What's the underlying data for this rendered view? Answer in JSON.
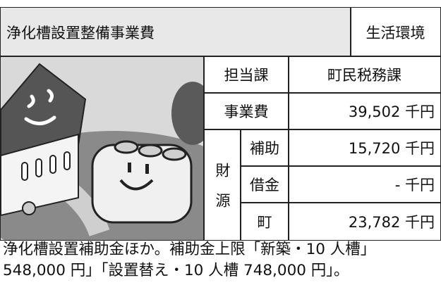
{
  "header": {
    "title": "浄化槽設置整備事業費",
    "category": "生活環境"
  },
  "table": {
    "rows": [
      {
        "label": "担当課",
        "value": "町民税務課"
      },
      {
        "label": "事業費",
        "value": "39,502 千円"
      }
    ],
    "funding": {
      "label": "財源",
      "rows": [
        {
          "label": "補助",
          "value": "15,720 千円"
        },
        {
          "label": "借金",
          "value": "- 千円"
        },
        {
          "label": "町",
          "value": "23,782 千円"
        }
      ]
    }
  },
  "note": [
    "浄化槽設置補助金ほか。補助金上限「新築・10 人槽」",
    "548,000 円」「設置替え・10 人槽 748,000 円」。"
  ]
}
